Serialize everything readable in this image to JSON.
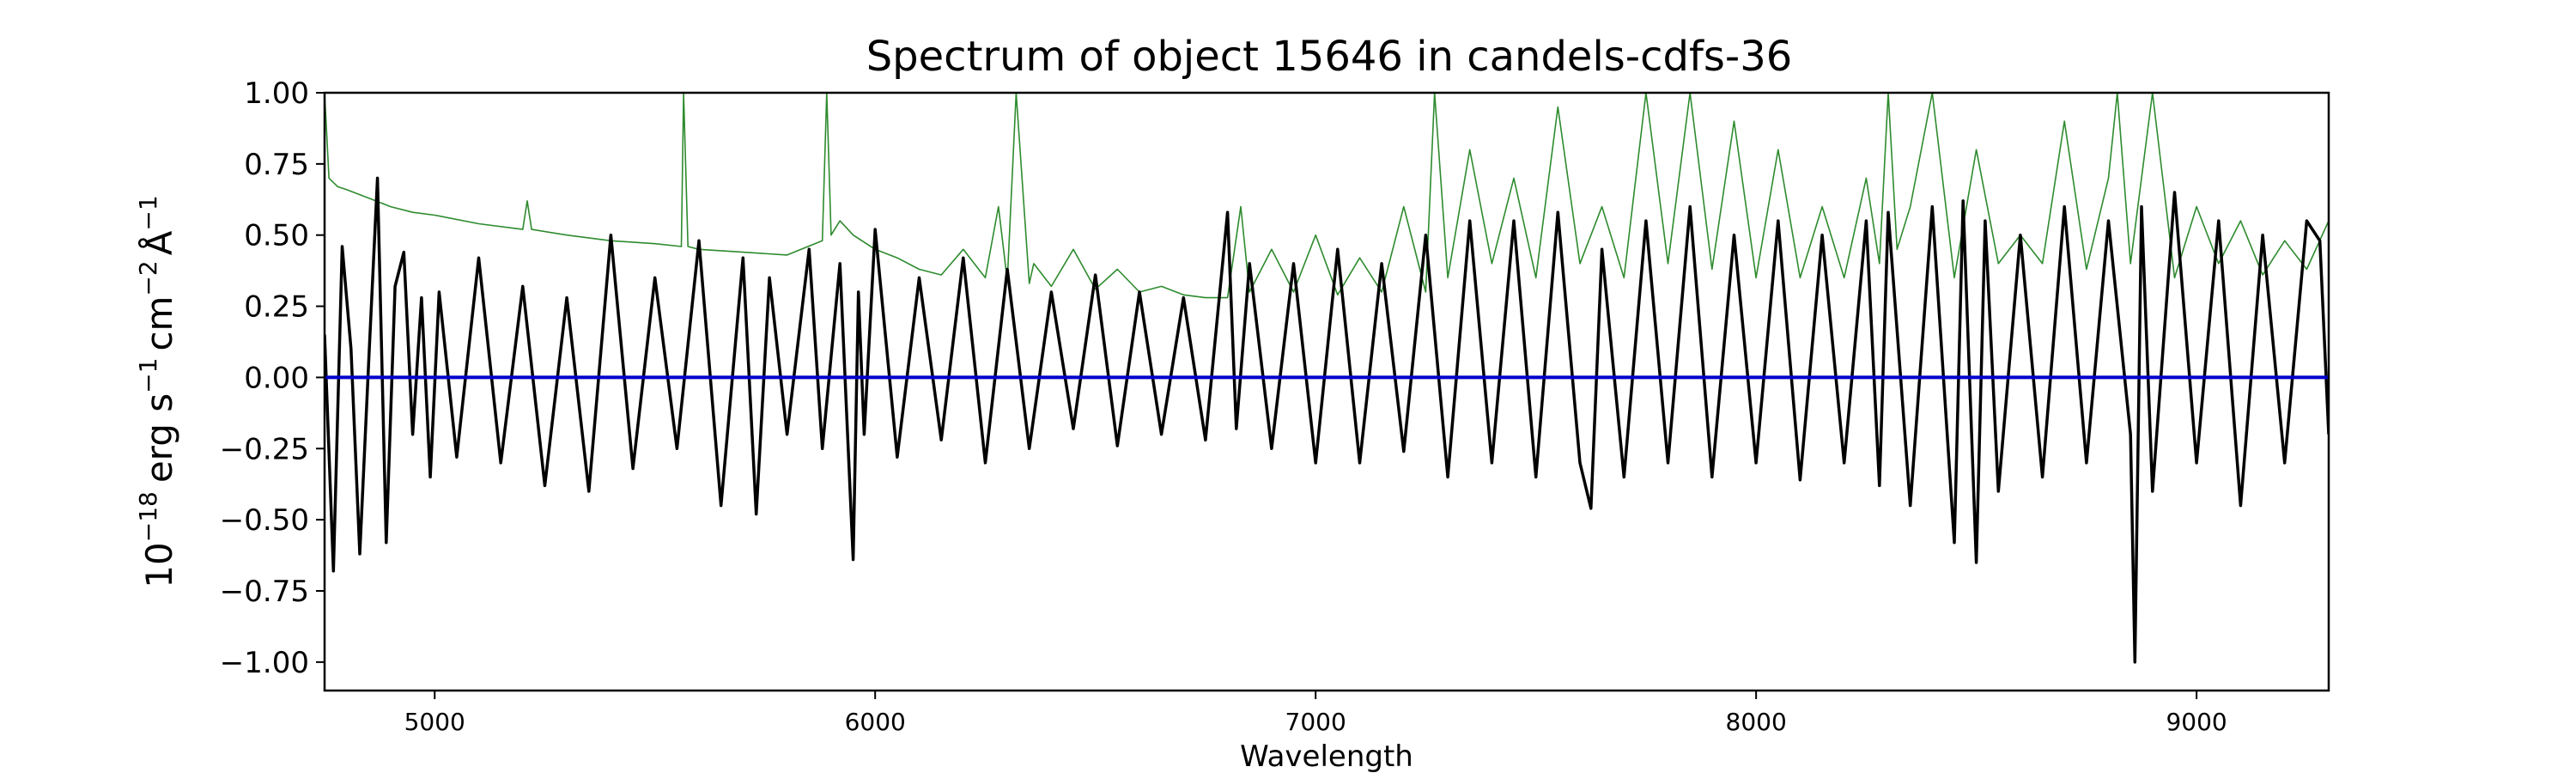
{
  "chart_data": {
    "type": "line",
    "title": "Spectrum of object 15646 in candels-cdfs-36",
    "xlabel": "Wavelength",
    "ylabel_parts": {
      "base": "10",
      "exp": "−18",
      "units": "erg s",
      "m1": "−1",
      "cm": "cm",
      "m2": "−2",
      "ang": "Å",
      "m3": "−1"
    },
    "xlim": [
      4750,
      9300
    ],
    "ylim": [
      -1.1,
      1.0
    ],
    "xticks": [
      {
        "value": 5000,
        "label": "5000"
      },
      {
        "value": 6000,
        "label": "6000"
      },
      {
        "value": 7000,
        "label": "7000"
      },
      {
        "value": 8000,
        "label": "8000"
      },
      {
        "value": 9000,
        "label": "9000"
      }
    ],
    "yticks": [
      {
        "value": 1.0,
        "label": "1.00"
      },
      {
        "value": 0.75,
        "label": "0.75"
      },
      {
        "value": 0.5,
        "label": "0.50"
      },
      {
        "value": 0.25,
        "label": "0.25"
      },
      {
        "value": 0.0,
        "label": "0.00"
      },
      {
        "value": -0.25,
        "label": "−0.25"
      },
      {
        "value": -0.5,
        "label": "−0.50"
      },
      {
        "value": -0.75,
        "label": "−0.75"
      },
      {
        "value": -1.0,
        "label": "−1.00"
      }
    ],
    "grid": false,
    "legend": "none",
    "series": [
      {
        "role": "flux",
        "color": "#000000",
        "x": [
          4750,
          4770,
          4790,
          4810,
          4830,
          4850,
          4870,
          4890,
          4910,
          4930,
          4950,
          4970,
          4990,
          5010,
          5050,
          5100,
          5150,
          5200,
          5250,
          5300,
          5350,
          5400,
          5450,
          5500,
          5550,
          5600,
          5650,
          5700,
          5730,
          5760,
          5800,
          5850,
          5880,
          5920,
          5950,
          5962,
          5975,
          6000,
          6050,
          6100,
          6150,
          6200,
          6250,
          6300,
          6350,
          6400,
          6450,
          6500,
          6550,
          6600,
          6650,
          6700,
          6750,
          6800,
          6820,
          6850,
          6900,
          6950,
          7000,
          7050,
          7100,
          7150,
          7200,
          7250,
          7300,
          7350,
          7400,
          7450,
          7500,
          7550,
          7600,
          7625,
          7650,
          7700,
          7750,
          7800,
          7850,
          7900,
          7950,
          8000,
          8050,
          8100,
          8150,
          8200,
          8250,
          8280,
          8300,
          8350,
          8400,
          8450,
          8470,
          8500,
          8520,
          8550,
          8600,
          8650,
          8700,
          8750,
          8800,
          8850,
          8860,
          8875,
          8900,
          8950,
          9000,
          9050,
          9100,
          9150,
          9200,
          9250,
          9280,
          9300
        ],
        "y": [
          0.15,
          -0.68,
          0.46,
          0.1,
          -0.62,
          0.05,
          0.7,
          -0.58,
          0.32,
          0.44,
          -0.2,
          0.28,
          -0.35,
          0.3,
          -0.28,
          0.42,
          -0.3,
          0.32,
          -0.38,
          0.28,
          -0.4,
          0.5,
          -0.32,
          0.35,
          -0.25,
          0.48,
          -0.45,
          0.42,
          -0.48,
          0.35,
          -0.2,
          0.45,
          -0.25,
          0.4,
          -0.64,
          0.3,
          -0.2,
          0.52,
          -0.28,
          0.35,
          -0.22,
          0.42,
          -0.3,
          0.38,
          -0.25,
          0.3,
          -0.18,
          0.36,
          -0.24,
          0.3,
          -0.2,
          0.28,
          -0.22,
          0.58,
          -0.18,
          0.4,
          -0.25,
          0.4,
          -0.3,
          0.45,
          -0.3,
          0.4,
          -0.26,
          0.5,
          -0.35,
          0.55,
          -0.3,
          0.55,
          -0.35,
          0.58,
          -0.3,
          -0.46,
          0.45,
          -0.35,
          0.55,
          -0.3,
          0.6,
          -0.35,
          0.5,
          -0.3,
          0.55,
          -0.36,
          0.5,
          -0.3,
          0.55,
          -0.38,
          0.58,
          -0.45,
          0.6,
          -0.58,
          0.62,
          -0.65,
          0.55,
          -0.4,
          0.5,
          -0.35,
          0.6,
          -0.3,
          0.55,
          -0.2,
          -1.0,
          0.6,
          -0.4,
          0.65,
          -0.3,
          0.55,
          -0.45,
          0.5,
          -0.3,
          0.55,
          0.48,
          -0.2
        ]
      },
      {
        "role": "error",
        "color": "#2e8b2e",
        "x": [
          4750,
          4755,
          4760,
          4780,
          4800,
          4850,
          4900,
          4950,
          5000,
          5100,
          5200,
          5210,
          5220,
          5300,
          5400,
          5500,
          5560,
          5565,
          5575,
          5600,
          5700,
          5800,
          5880,
          5890,
          5900,
          5920,
          5950,
          6000,
          6050,
          6100,
          6150,
          6200,
          6250,
          6280,
          6300,
          6320,
          6350,
          6360,
          6400,
          6450,
          6500,
          6550,
          6600,
          6650,
          6700,
          6750,
          6800,
          6830,
          6850,
          6900,
          6950,
          7000,
          7050,
          7100,
          7150,
          7200,
          7250,
          7270,
          7300,
          7350,
          7400,
          7450,
          7500,
          7550,
          7600,
          7650,
          7700,
          7750,
          7800,
          7850,
          7900,
          7950,
          8000,
          8050,
          8100,
          8150,
          8200,
          8250,
          8280,
          8300,
          8320,
          8350,
          8400,
          8450,
          8500,
          8550,
          8600,
          8650,
          8700,
          8750,
          8800,
          8820,
          8850,
          8900,
          8950,
          9000,
          9050,
          9100,
          9150,
          9200,
          9250,
          9300
        ],
        "y": [
          1.0,
          0.85,
          0.7,
          0.67,
          0.66,
          0.63,
          0.6,
          0.58,
          0.57,
          0.54,
          0.52,
          0.62,
          0.52,
          0.5,
          0.48,
          0.47,
          0.46,
          1.0,
          0.46,
          0.45,
          0.44,
          0.43,
          0.48,
          1.0,
          0.5,
          0.55,
          0.5,
          0.45,
          0.42,
          0.38,
          0.36,
          0.45,
          0.35,
          0.6,
          0.34,
          1.0,
          0.33,
          0.4,
          0.32,
          0.45,
          0.31,
          0.38,
          0.3,
          0.32,
          0.29,
          0.28,
          0.28,
          0.6,
          0.3,
          0.45,
          0.3,
          0.5,
          0.29,
          0.42,
          0.3,
          0.6,
          0.3,
          1.0,
          0.35,
          0.8,
          0.4,
          0.7,
          0.35,
          0.95,
          0.4,
          0.6,
          0.35,
          1.0,
          0.4,
          1.0,
          0.38,
          0.9,
          0.35,
          0.8,
          0.35,
          0.6,
          0.35,
          0.7,
          0.4,
          1.0,
          0.45,
          0.6,
          1.0,
          0.35,
          0.8,
          0.4,
          0.5,
          0.4,
          0.9,
          0.38,
          0.7,
          1.0,
          0.4,
          1.0,
          0.35,
          0.6,
          0.4,
          0.55,
          0.36,
          0.48,
          0.38,
          0.55
        ]
      },
      {
        "role": "model",
        "color": "#0000cc",
        "x": [
          4750,
          9300
        ],
        "y": [
          0.0,
          0.0
        ]
      }
    ]
  }
}
